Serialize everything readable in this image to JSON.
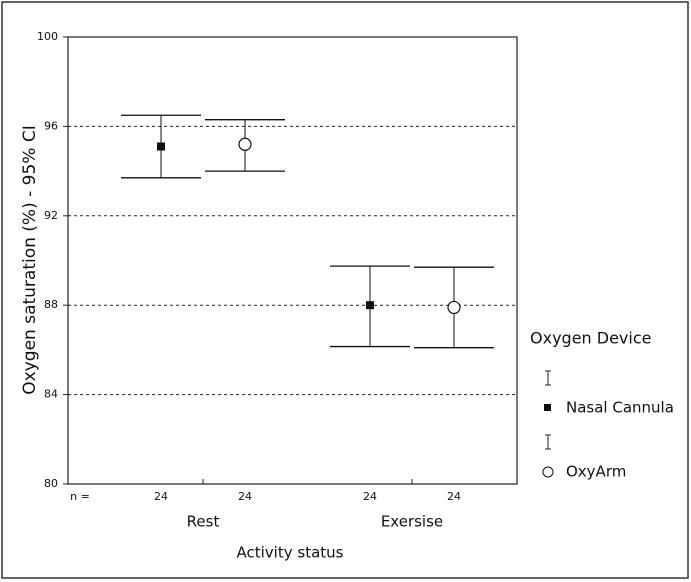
{
  "chart_data": {
    "type": "errorbar",
    "y_label": "Oxygen saturation (%) - 95% CI",
    "x_label": "Activity status",
    "categories": [
      "Rest",
      "Exersise"
    ],
    "series": [
      {
        "name": "Nasal Cannula",
        "marker": "square",
        "color": "#111111",
        "values": [
          95.1,
          88.0
        ],
        "ci_low": [
          93.7,
          86.15
        ],
        "ci_high": [
          96.5,
          89.75
        ],
        "n": [
          24,
          24
        ]
      },
      {
        "name": "OxyArm",
        "marker": "circle",
        "color": "#111111",
        "values": [
          95.2,
          87.9
        ],
        "ci_low": [
          94.0,
          86.1
        ],
        "ci_high": [
          96.3,
          89.7
        ],
        "n": [
          24,
          24
        ]
      }
    ],
    "n_label": "n =",
    "legend_title": "Oxygen Device",
    "ylim": [
      80,
      100
    ],
    "yticks": [
      80,
      84,
      88,
      92,
      96,
      100
    ],
    "grid": true
  }
}
